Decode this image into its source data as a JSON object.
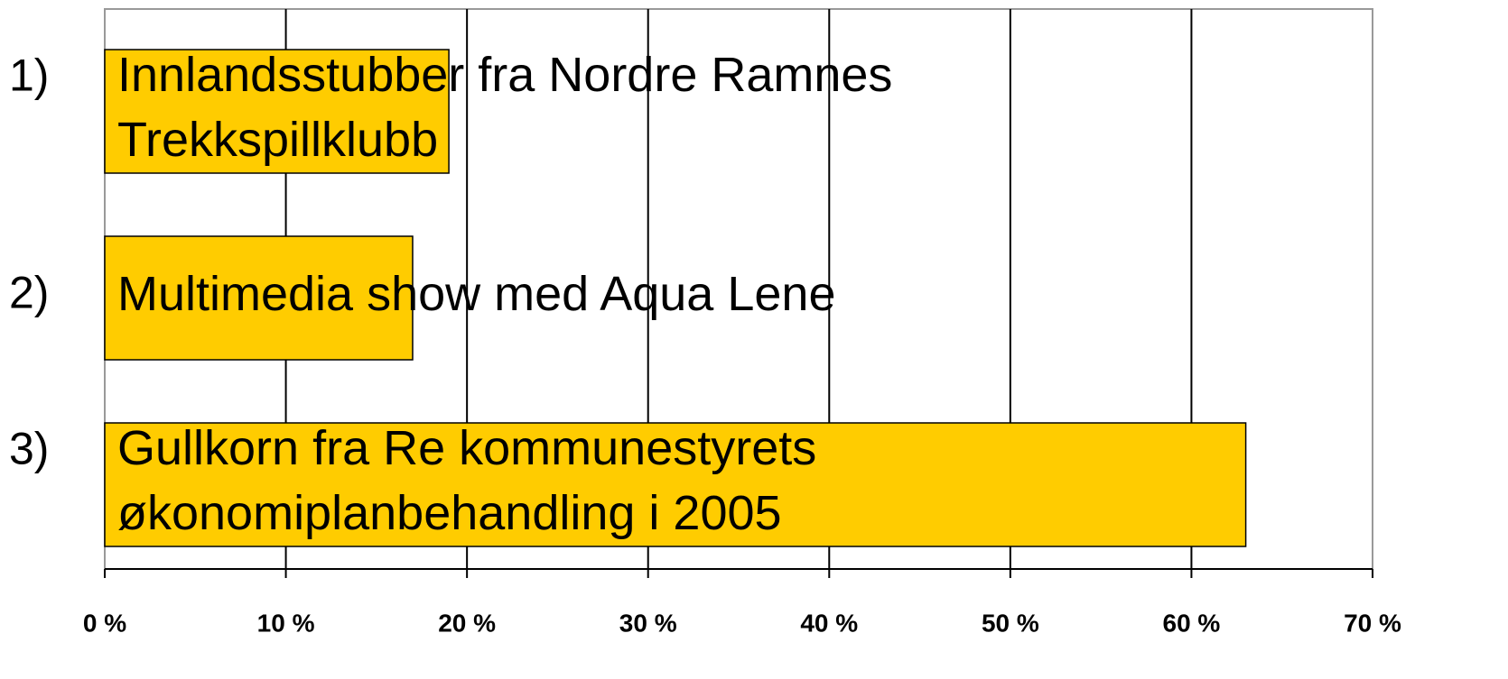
{
  "chart_data": {
    "type": "barh",
    "categories": [
      "1)",
      "2)",
      "3)"
    ],
    "bar_labels": [
      [
        "Innlandsstubber fra Nordre Ramnes",
        "Trekkspillklubb"
      ],
      [
        "Multimedia show med Aqua Lene"
      ],
      [
        "Gullkorn fra Re kommunestyrets",
        "økonomiplanbehandling i 2005"
      ]
    ],
    "values": [
      19,
      17,
      63
    ],
    "color": "#ffcc00",
    "xlim": [
      0,
      70
    ],
    "xticks": [
      {
        "value": 0,
        "label": "0 %"
      },
      {
        "value": 10,
        "label": "10 %"
      },
      {
        "value": 20,
        "label": "20 %"
      },
      {
        "value": 30,
        "label": "30 %"
      },
      {
        "value": 40,
        "label": "40 %"
      },
      {
        "value": 50,
        "label": "50 %"
      },
      {
        "value": 60,
        "label": "60 %"
      },
      {
        "value": 70,
        "label": "70 %"
      }
    ],
    "grid": true
  }
}
